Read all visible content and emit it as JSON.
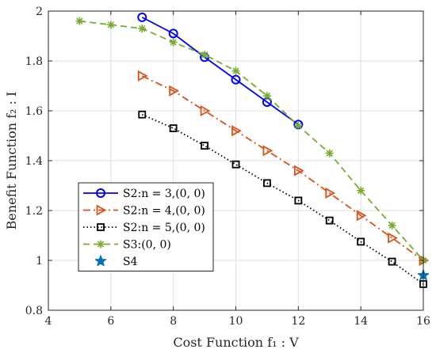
{
  "chart_data": {
    "type": "line",
    "title": "",
    "xlabel": "Cost Function f₁ : V",
    "ylabel": "Benefit Function f₂ : I",
    "xlim": [
      4,
      16
    ],
    "ylim": [
      0.8,
      2
    ],
    "xticks": [
      4,
      6,
      8,
      10,
      12,
      14,
      16
    ],
    "yticks": [
      0.8,
      1,
      1.2,
      1.4,
      1.6,
      1.8,
      2
    ],
    "xtick_labels": [
      "4",
      "6",
      "8",
      "10",
      "12",
      "14",
      "16"
    ],
    "ytick_labels": [
      "0.8",
      "1",
      "1.2",
      "1.4",
      "1.6",
      "1.8",
      "2"
    ],
    "grid": true,
    "legend_position": "bottom-left",
    "series": [
      {
        "name": "S2:n = 3,(0, 0)",
        "color": "#0000ff",
        "line": "solid",
        "marker": "circle",
        "x": [
          7,
          8,
          9,
          10,
          11,
          12
        ],
        "y": [
          1.975,
          1.91,
          1.815,
          1.725,
          1.635,
          1.545
        ]
      },
      {
        "name": "S2:n = 4,(0, 0)",
        "color": "#d95319",
        "line": "dashdot",
        "marker": "triangle-right",
        "x": [
          7,
          8,
          9,
          10,
          11,
          12,
          13,
          14,
          15,
          16
        ],
        "y": [
          1.74,
          1.68,
          1.6,
          1.52,
          1.44,
          1.36,
          1.27,
          1.18,
          1.09,
          1.0
        ]
      },
      {
        "name": "S2:n = 5,(0, 0)",
        "color": "#000000",
        "line": "dotted",
        "marker": "square",
        "x": [
          7,
          8,
          9,
          10,
          11,
          12,
          13,
          14,
          15,
          16
        ],
        "y": [
          1.585,
          1.53,
          1.46,
          1.385,
          1.31,
          1.24,
          1.16,
          1.075,
          0.995,
          0.905
        ]
      },
      {
        "name": "S3:(0, 0)",
        "color": "#77ac30",
        "line": "dashed",
        "marker": "asterisk",
        "x": [
          5,
          6,
          7,
          8,
          9,
          10,
          11,
          12,
          13,
          14,
          15,
          16
        ],
        "y": [
          1.96,
          1.945,
          1.93,
          1.875,
          1.825,
          1.76,
          1.66,
          1.54,
          1.43,
          1.28,
          1.14,
          1.0
        ]
      },
      {
        "name": "S4",
        "color": "#0072bd",
        "line": "none",
        "marker": "star",
        "x": [
          16
        ],
        "y": [
          0.94
        ]
      }
    ]
  }
}
